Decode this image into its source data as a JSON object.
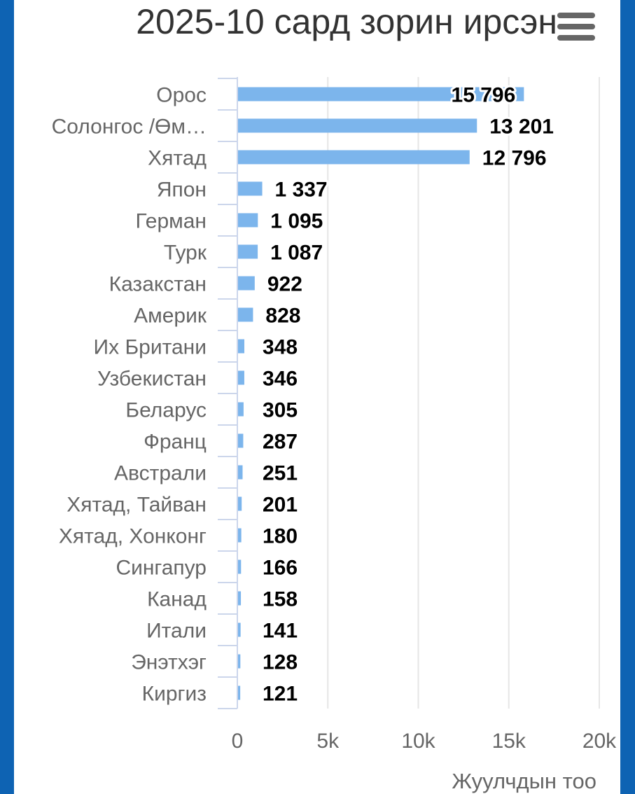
{
  "title": "2025-10 сард зорин ирсэн",
  "menu_icon": "hamburger-menu-icon",
  "colors": {
    "bar": "#7cb5ec",
    "frame": "#0e63b3"
  },
  "chart_data": {
    "type": "bar",
    "orientation": "horizontal",
    "title": "2025-10 сард зорин ирсэн",
    "xlabel": "Жуулчдын тоо",
    "ylabel": "",
    "categories": [
      "Орос",
      "Солонгос /Өм…",
      "Хятад",
      "Япон",
      "Герман",
      "Турк",
      "Казакстан",
      "Америк",
      "Их Британи",
      "Узбекистан",
      "Беларус",
      "Франц",
      "Австрали",
      "Хятад, Тайван",
      "Хятад, Хонконг",
      "Сингапур",
      "Канад",
      "Итали",
      "Энэтхэг",
      "Киргиз"
    ],
    "values": [
      15796,
      13201,
      12796,
      1337,
      1095,
      1087,
      922,
      828,
      348,
      346,
      305,
      287,
      251,
      201,
      180,
      166,
      158,
      141,
      128,
      121
    ],
    "value_labels": [
      "15 796",
      "13 201",
      "12 796",
      "1 337",
      "1 095",
      "1 087",
      "922",
      "828",
      "348",
      "346",
      "305",
      "287",
      "251",
      "201",
      "180",
      "166",
      "158",
      "141",
      "128",
      "121"
    ],
    "xlim": [
      0,
      20000
    ],
    "ticks": [
      0,
      5000,
      10000,
      15000,
      20000
    ],
    "tick_labels": [
      "0",
      "5k",
      "10k",
      "15k",
      "20k"
    ],
    "grid": true,
    "legend": "none"
  }
}
